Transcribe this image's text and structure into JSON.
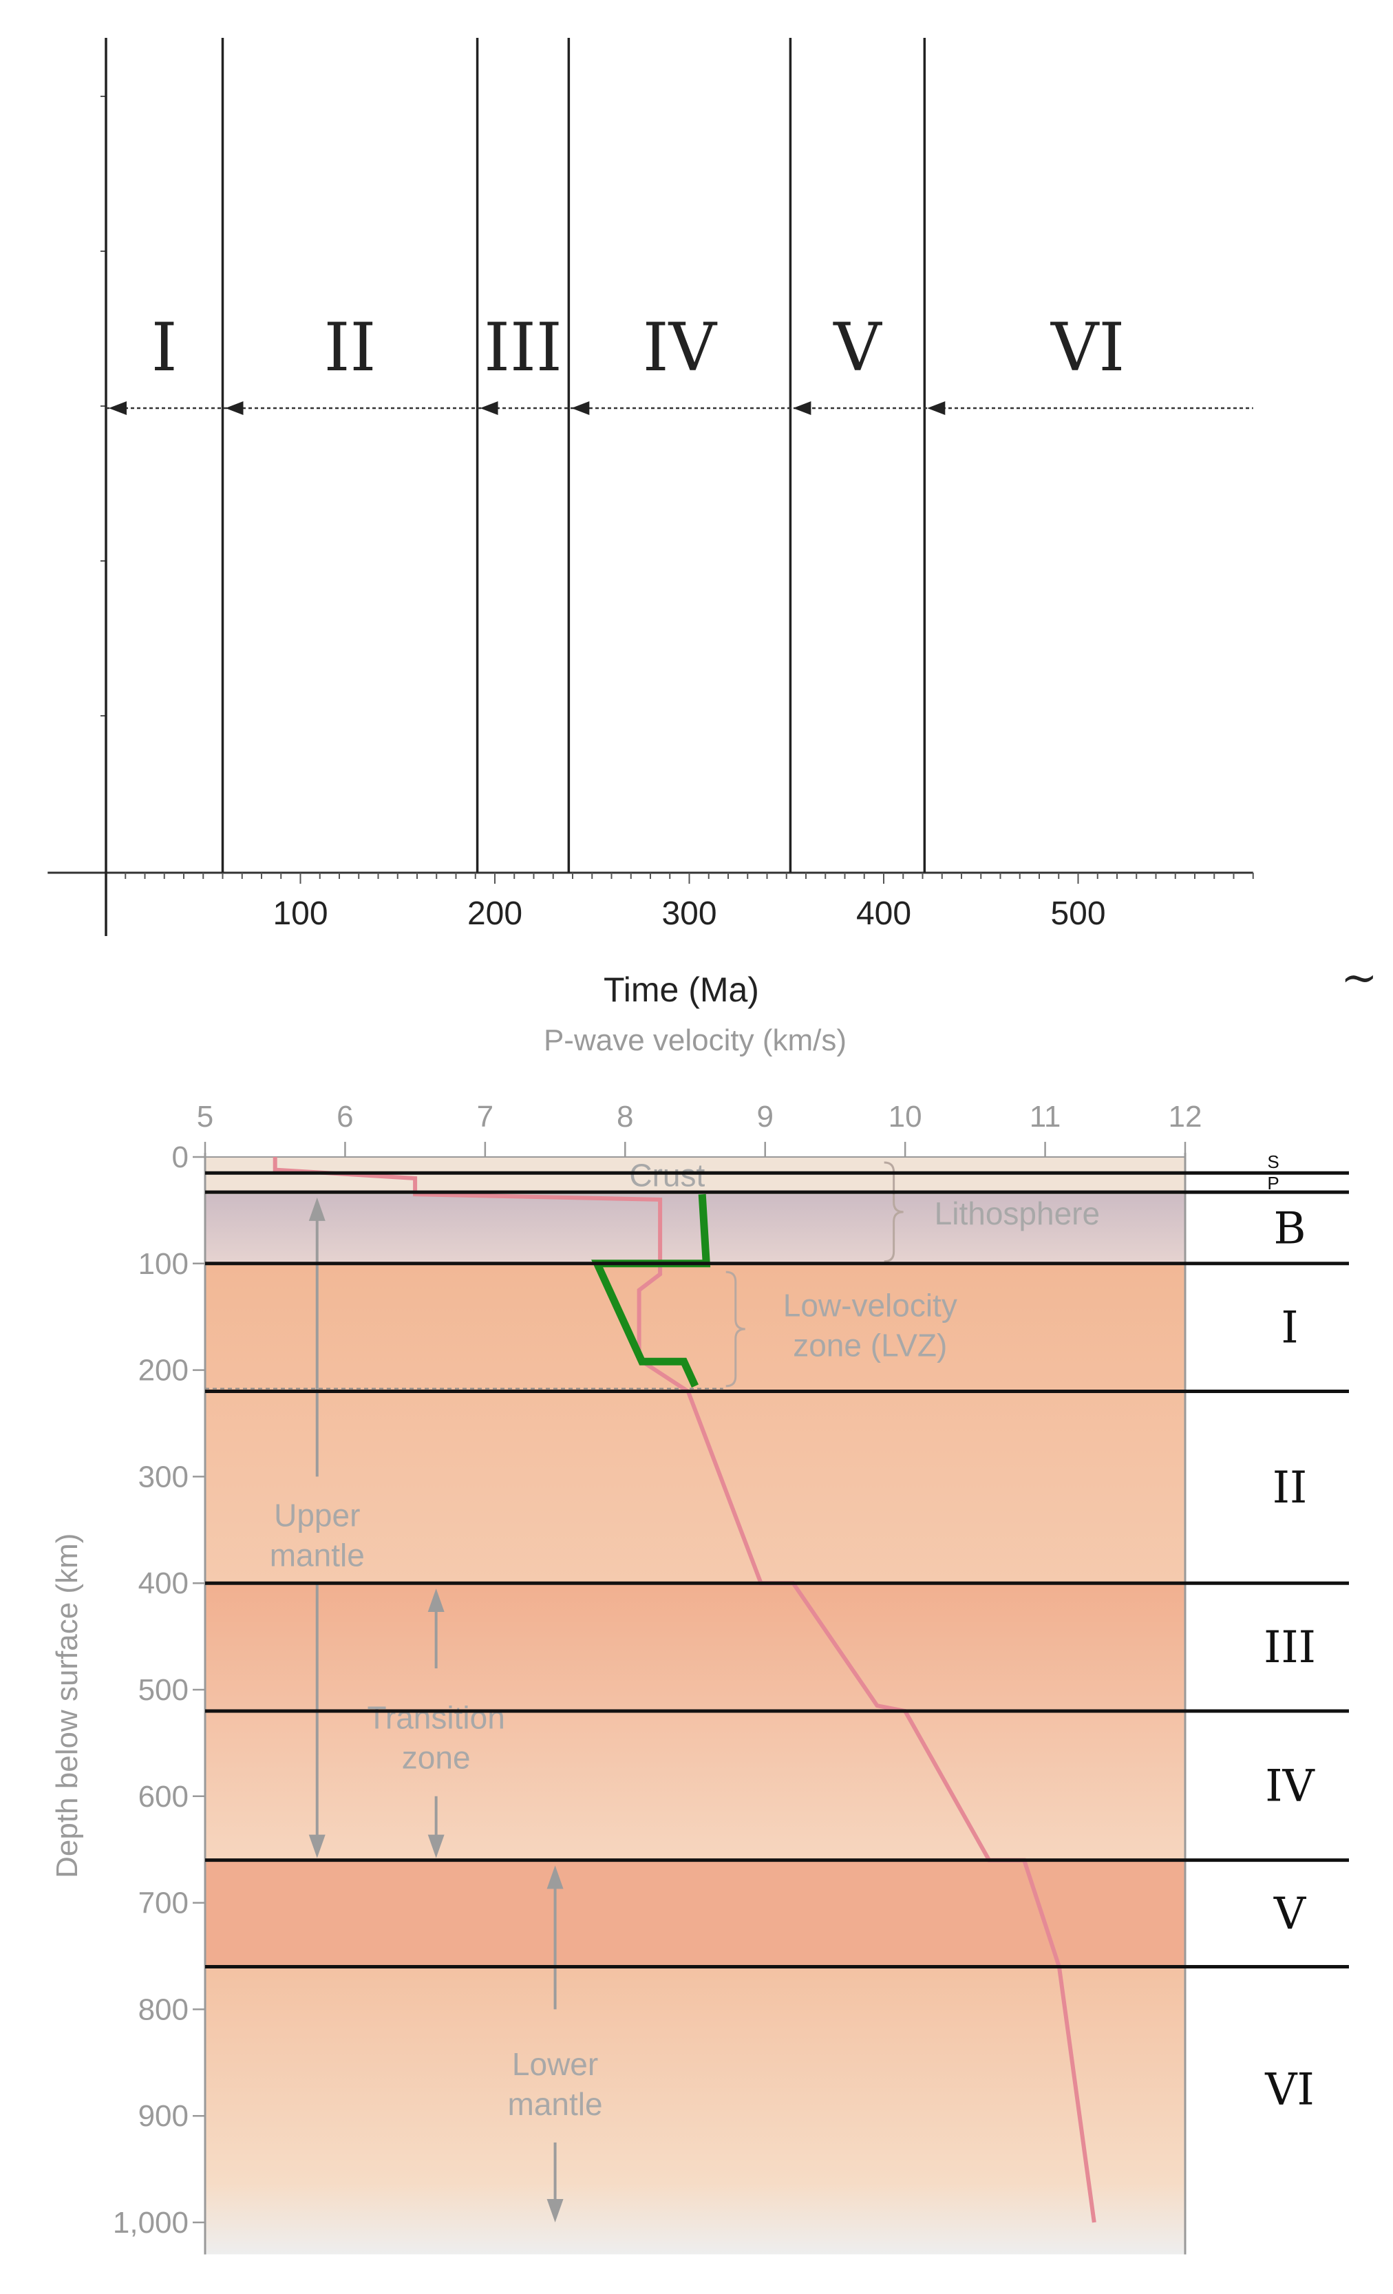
{
  "chart_data": [
    {
      "type": "timeline",
      "xlabel": "Time (Ma)",
      "xlim": [
        -30,
        590
      ],
      "x_ticks": [
        100,
        200,
        300,
        400,
        500
      ],
      "boundaries": [
        0,
        60,
        191,
        238,
        352,
        421
      ],
      "periods": [
        {
          "label": "I",
          "start": 0,
          "end": 60
        },
        {
          "label": "II",
          "start": 60,
          "end": 191
        },
        {
          "label": "III",
          "start": 191,
          "end": 238
        },
        {
          "label": "IV",
          "start": 238,
          "end": 352
        },
        {
          "label": "V",
          "start": 352,
          "end": 421
        },
        {
          "label": "VI",
          "start": 421,
          "end": 590
        }
      ]
    },
    {
      "type": "line",
      "title": "P-wave velocity (km/s)",
      "ylabel": "Depth below surface (km)",
      "xlim": [
        5,
        12
      ],
      "ylim": [
        0,
        1030
      ],
      "x_ticks": [
        "5",
        "6",
        "7",
        "8",
        "9",
        "10",
        "11",
        "12"
      ],
      "y_ticks": [
        "0",
        "100",
        "200",
        "300",
        "400",
        "500",
        "600",
        "700",
        "800",
        "900",
        "1,000"
      ],
      "y_tick_values": [
        0,
        100,
        200,
        300,
        400,
        500,
        600,
        700,
        800,
        900,
        1000
      ],
      "series": [
        {
          "color": "#e58a96",
          "x": [
            5.5,
            5.5,
            6.5,
            6.5,
            8.25,
            8.25,
            8.1,
            8.1,
            8.45,
            8.97,
            9.2,
            9.8,
            10.0,
            10.6,
            10.85,
            11.1,
            11.35
          ],
          "y": [
            0,
            12,
            20,
            35,
            40,
            110,
            125,
            190,
            220,
            400,
            400,
            515,
            520,
            660,
            660,
            760,
            1000
          ]
        },
        {
          "color": "#1a8a1a",
          "x": [
            8.55,
            8.58,
            7.8,
            8.12,
            8.42,
            8.5
          ],
          "y": [
            35,
            100,
            100,
            192,
            192,
            215
          ]
        }
      ],
      "layers": [
        {
          "top": 0,
          "bottom": 35,
          "color": "#f1e3d6"
        },
        {
          "top": 35,
          "bottom": 100,
          "color": "#dccbcd"
        },
        {
          "top": 100,
          "bottom": 400,
          "color": "#f3c1a0"
        },
        {
          "top": 400,
          "bottom": 660,
          "color": "#f2b595"
        },
        {
          "top": 660,
          "bottom": 760,
          "color": "#f0ad90"
        },
        {
          "top": 760,
          "bottom": 1030,
          "color": "#f3c2a3"
        }
      ],
      "annotations": [
        {
          "text": "Crust",
          "x": 8.3,
          "y": 17
        },
        {
          "text": "Lithosphere",
          "x": 10.8,
          "y": 53
        },
        {
          "text": "Low-velocity zone (LVZ)",
          "x": 9.75,
          "y": 158
        },
        {
          "text": "Upper mantle",
          "x": 5.8,
          "y": 355
        },
        {
          "text": "Transition zone",
          "x": 6.65,
          "y": 545
        },
        {
          "text": "Lower mantle",
          "x": 7.5,
          "y": 870
        }
      ],
      "boundary_depths": [
        15,
        33,
        100,
        220,
        400,
        520,
        660,
        760
      ],
      "zone_labels": [
        {
          "label": "S",
          "depth": 4
        },
        {
          "label": "P",
          "depth": 24
        },
        {
          "label": "B",
          "depth": 67
        },
        {
          "label": "I",
          "depth": 160
        },
        {
          "label": "II",
          "depth": 310
        },
        {
          "label": "III",
          "depth": 460
        },
        {
          "label": "IV",
          "depth": 590
        },
        {
          "label": "V",
          "depth": 710
        },
        {
          "label": "VI",
          "depth": 875
        }
      ]
    }
  ],
  "tilde_mark": "~"
}
